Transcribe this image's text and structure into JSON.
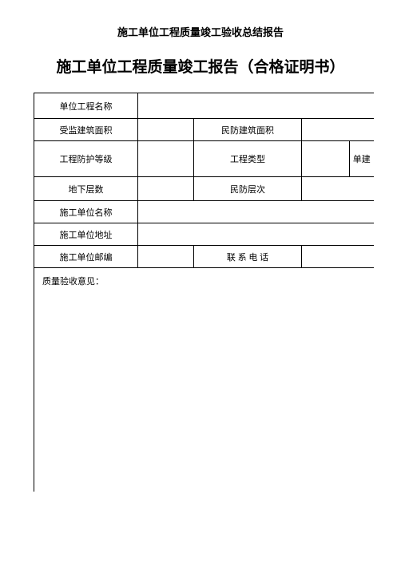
{
  "header_title": "施工单位工程质量竣工验收总结报告",
  "main_title": "施工单位工程质量竣工报告（合格证明书）",
  "table": {
    "rows": {
      "r1": {
        "label": "单位工程名称",
        "value": ""
      },
      "r2": {
        "label1": "受监建筑面积",
        "value1": "",
        "label2": "民防建筑面积",
        "value2": ""
      },
      "r3": {
        "label1": "工程防护等级",
        "value1": "",
        "label2": "工程类型",
        "value2": "",
        "extra": "单建"
      },
      "r4": {
        "label1": "地下层数",
        "value1": "",
        "label2": "民防层次",
        "value2": ""
      },
      "r5": {
        "label": "施工单位名称",
        "value": ""
      },
      "r6": {
        "label": "施工单位地址",
        "value": ""
      },
      "r7": {
        "label1": "施工单位邮编",
        "value1": "",
        "label2": "联 系 电 话",
        "value2": ""
      },
      "opinion": {
        "label": "质量验收意见："
      }
    }
  },
  "style": {
    "background_color": "#ffffff",
    "border_color": "#000000",
    "header_fontsize": 13,
    "main_title_fontsize": 19,
    "table_fontsize": 11
  }
}
